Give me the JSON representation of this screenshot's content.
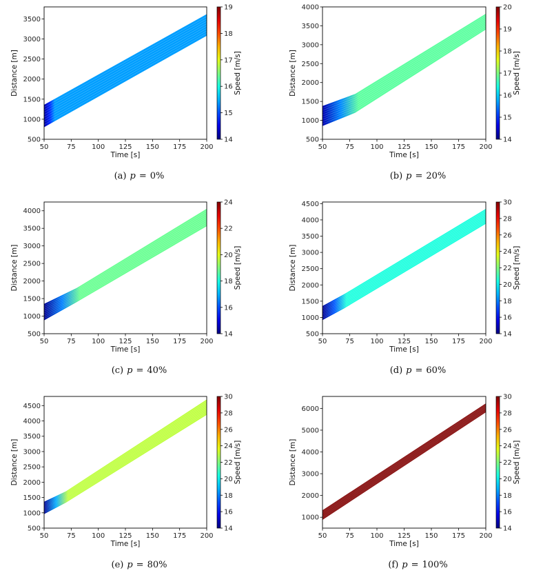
{
  "chart_data": [
    {
      "type": "heatmap",
      "id": "a",
      "caption_label": "(a)",
      "caption_var": "p",
      "caption_eq": "=",
      "caption_value": "0%",
      "xlabel": "Time [s]",
      "ylabel": "Distance [m]",
      "colorbar_label": "Speed [m/s]",
      "xlim": [
        50,
        200
      ],
      "ylim": [
        500,
        3800
      ],
      "xticks": [
        "50",
        "75",
        "100",
        "125",
        "150",
        "175",
        "200"
      ],
      "yticks": [
        "500",
        "1000",
        "1500",
        "2000",
        "2500",
        "3000",
        "3500"
      ],
      "clim": [
        14,
        19
      ],
      "cbticks": [
        "14",
        "15",
        "16",
        "17",
        "18",
        "19"
      ],
      "band": {
        "t": [
          50,
          200
        ],
        "lower": [
          800,
          3080
        ],
        "upper": [
          1360,
          3620
        ]
      },
      "speed_dominant": 15.4,
      "jam_speed": 14.2
    },
    {
      "type": "heatmap",
      "id": "b",
      "caption_label": "(b)",
      "caption_var": "p",
      "caption_eq": "=",
      "caption_value": "20%",
      "xlabel": "Time [s]",
      "ylabel": "Distance [m]",
      "colorbar_label": "Speed [m/s]",
      "xlim": [
        50,
        200
      ],
      "ylim": [
        500,
        4000
      ],
      "xticks": [
        "50",
        "75",
        "100",
        "125",
        "150",
        "175",
        "200"
      ],
      "yticks": [
        "500",
        "1000",
        "1500",
        "2000",
        "2500",
        "3000",
        "3500",
        "4000"
      ],
      "clim": [
        14,
        20
      ],
      "cbticks": [
        "14",
        "15",
        "16",
        "17",
        "18",
        "19",
        "20"
      ],
      "band": {
        "t": [
          50,
          80,
          200
        ],
        "lower": [
          850,
          1200,
          3400
        ],
        "upper": [
          1380,
          1700,
          3820
        ]
      },
      "speed_dominant": 16.8,
      "jam_speed": 14.3
    },
    {
      "type": "heatmap",
      "id": "c",
      "caption_label": "(c)",
      "caption_var": "p",
      "caption_eq": "=",
      "caption_value": "40%",
      "xlabel": "Time [s]",
      "ylabel": "Distance [m]",
      "colorbar_label": "Speed [m/s]",
      "xlim": [
        50,
        200
      ],
      "ylim": [
        500,
        4250
      ],
      "xticks": [
        "50",
        "75",
        "100",
        "125",
        "150",
        "175",
        "200"
      ],
      "yticks": [
        "500",
        "1000",
        "1500",
        "2000",
        "2500",
        "3000",
        "3500",
        "4000"
      ],
      "clim": [
        14,
        24
      ],
      "cbticks": [
        "14",
        "16",
        "18",
        "20",
        "22",
        "24"
      ],
      "band": {
        "t": [
          50,
          80,
          200
        ],
        "lower": [
          880,
          1400,
          3560
        ],
        "upper": [
          1350,
          1800,
          4060
        ]
      },
      "speed_dominant": 18.8,
      "jam_speed": 14.2
    },
    {
      "type": "heatmap",
      "id": "d",
      "caption_label": "(d)",
      "caption_var": "p",
      "caption_eq": "=",
      "caption_value": "60%",
      "xlabel": "Time [s]",
      "ylabel": "Distance [m]",
      "colorbar_label": "Speed [m/s]",
      "xlim": [
        50,
        200
      ],
      "ylim": [
        500,
        4550
      ],
      "xticks": [
        "50",
        "75",
        "100",
        "125",
        "150",
        "175",
        "200"
      ],
      "yticks": [
        "500",
        "1000",
        "1500",
        "2000",
        "2500",
        "3000",
        "3500",
        "4000",
        "4500"
      ],
      "clim": [
        14,
        30
      ],
      "cbticks": [
        "14",
        "16",
        "18",
        "20",
        "22",
        "24",
        "26",
        "28",
        "30"
      ],
      "band": {
        "t": [
          50,
          70,
          200
        ],
        "lower": [
          920,
          1280,
          3880
        ],
        "upper": [
          1350,
          1720,
          4340
        ]
      },
      "speed_dominant": 20.5,
      "jam_speed": 14.3
    },
    {
      "type": "heatmap",
      "id": "e",
      "caption_label": "(e)",
      "caption_var": "p",
      "caption_eq": "=",
      "caption_value": "80%",
      "xlabel": "Time [s]",
      "ylabel": "Distance [m]",
      "colorbar_label": "Speed [m/s]",
      "xlim": [
        50,
        200
      ],
      "ylim": [
        500,
        4800
      ],
      "xticks": [
        "50",
        "75",
        "100",
        "125",
        "150",
        "175",
        "200"
      ],
      "yticks": [
        "500",
        "1000",
        "1500",
        "2000",
        "2500",
        "3000",
        "3500",
        "4000",
        "4500"
      ],
      "clim": [
        14,
        30
      ],
      "cbticks": [
        "14",
        "16",
        "18",
        "20",
        "22",
        "24",
        "26",
        "28",
        "30"
      ],
      "band": {
        "t": [
          50,
          70,
          200
        ],
        "lower": [
          960,
          1330,
          4200
        ],
        "upper": [
          1360,
          1700,
          4700
        ]
      },
      "speed_dominant": 23.0,
      "jam_speed": 14.4
    },
    {
      "type": "heatmap",
      "id": "f",
      "caption_label": "(f)",
      "caption_var": "p",
      "caption_eq": "=",
      "caption_value": "100%",
      "xlabel": "Time [s]",
      "ylabel": "Distance [m]",
      "colorbar_label": "Speed [m/s]",
      "xlim": [
        50,
        200
      ],
      "ylim": [
        500,
        6550
      ],
      "xticks": [
        "50",
        "75",
        "100",
        "125",
        "150",
        "175",
        "200"
      ],
      "yticks": [
        "1000",
        "2000",
        "3000",
        "4000",
        "5000",
        "6000"
      ],
      "clim": [
        14,
        30
      ],
      "cbticks": [
        "14",
        "16",
        "18",
        "20",
        "22",
        "24",
        "26",
        "28",
        "30"
      ],
      "band": {
        "t": [
          50,
          200
        ],
        "lower": [
          880,
          5820
        ],
        "upper": [
          1320,
          6230
        ]
      },
      "speed_dominant": 30.0,
      "jam_speed": 30.0
    }
  ]
}
